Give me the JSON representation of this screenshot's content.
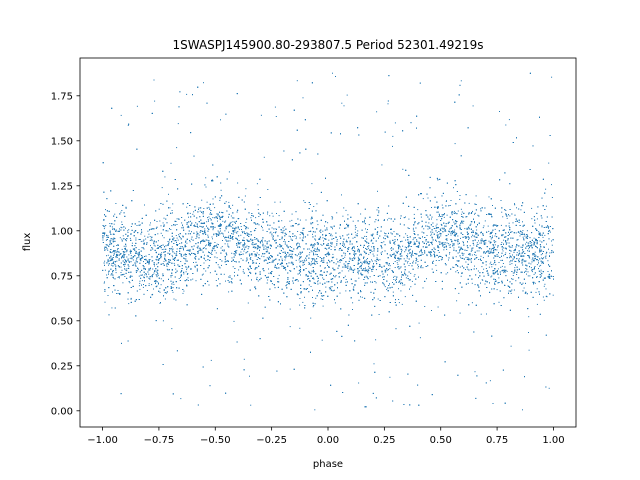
{
  "chart_data": {
    "type": "scatter",
    "title": "1SWASPJ145900.80-293807.5 Period 52301.49219s",
    "xlabel": "phase",
    "ylabel": "flux",
    "xlim": [
      -1.1,
      1.1
    ],
    "ylim": [
      -0.09,
      1.96
    ],
    "xticks": [
      -1.0,
      -0.75,
      -0.5,
      -0.25,
      0.0,
      0.25,
      0.5,
      0.75,
      1.0
    ],
    "xtick_labels": [
      "−1.00",
      "−0.75",
      "−0.50",
      "−0.25",
      "0.00",
      "0.25",
      "0.50",
      "0.75",
      "1.00"
    ],
    "yticks": [
      0.0,
      0.25,
      0.5,
      0.75,
      1.0,
      1.25,
      1.5,
      1.75
    ],
    "ytick_labels": [
      "0.00",
      "0.25",
      "0.50",
      "0.75",
      "1.00",
      "1.25",
      "1.50",
      "1.75"
    ],
    "grid": false,
    "marker_color": "#1f77b4",
    "series": [
      {
        "phase_range": [
          -1.0,
          1.0
        ],
        "profile_phase": [
          -1.0,
          -0.75,
          -0.5,
          -0.25,
          0.0,
          0.25,
          0.5,
          0.75,
          1.0
        ],
        "profile_flux": [
          0.88,
          0.85,
          0.97,
          0.88,
          0.85,
          0.85,
          0.97,
          0.88,
          0.85
        ],
        "flux_min": 0.0,
        "flux_max": 1.88
      }
    ]
  }
}
